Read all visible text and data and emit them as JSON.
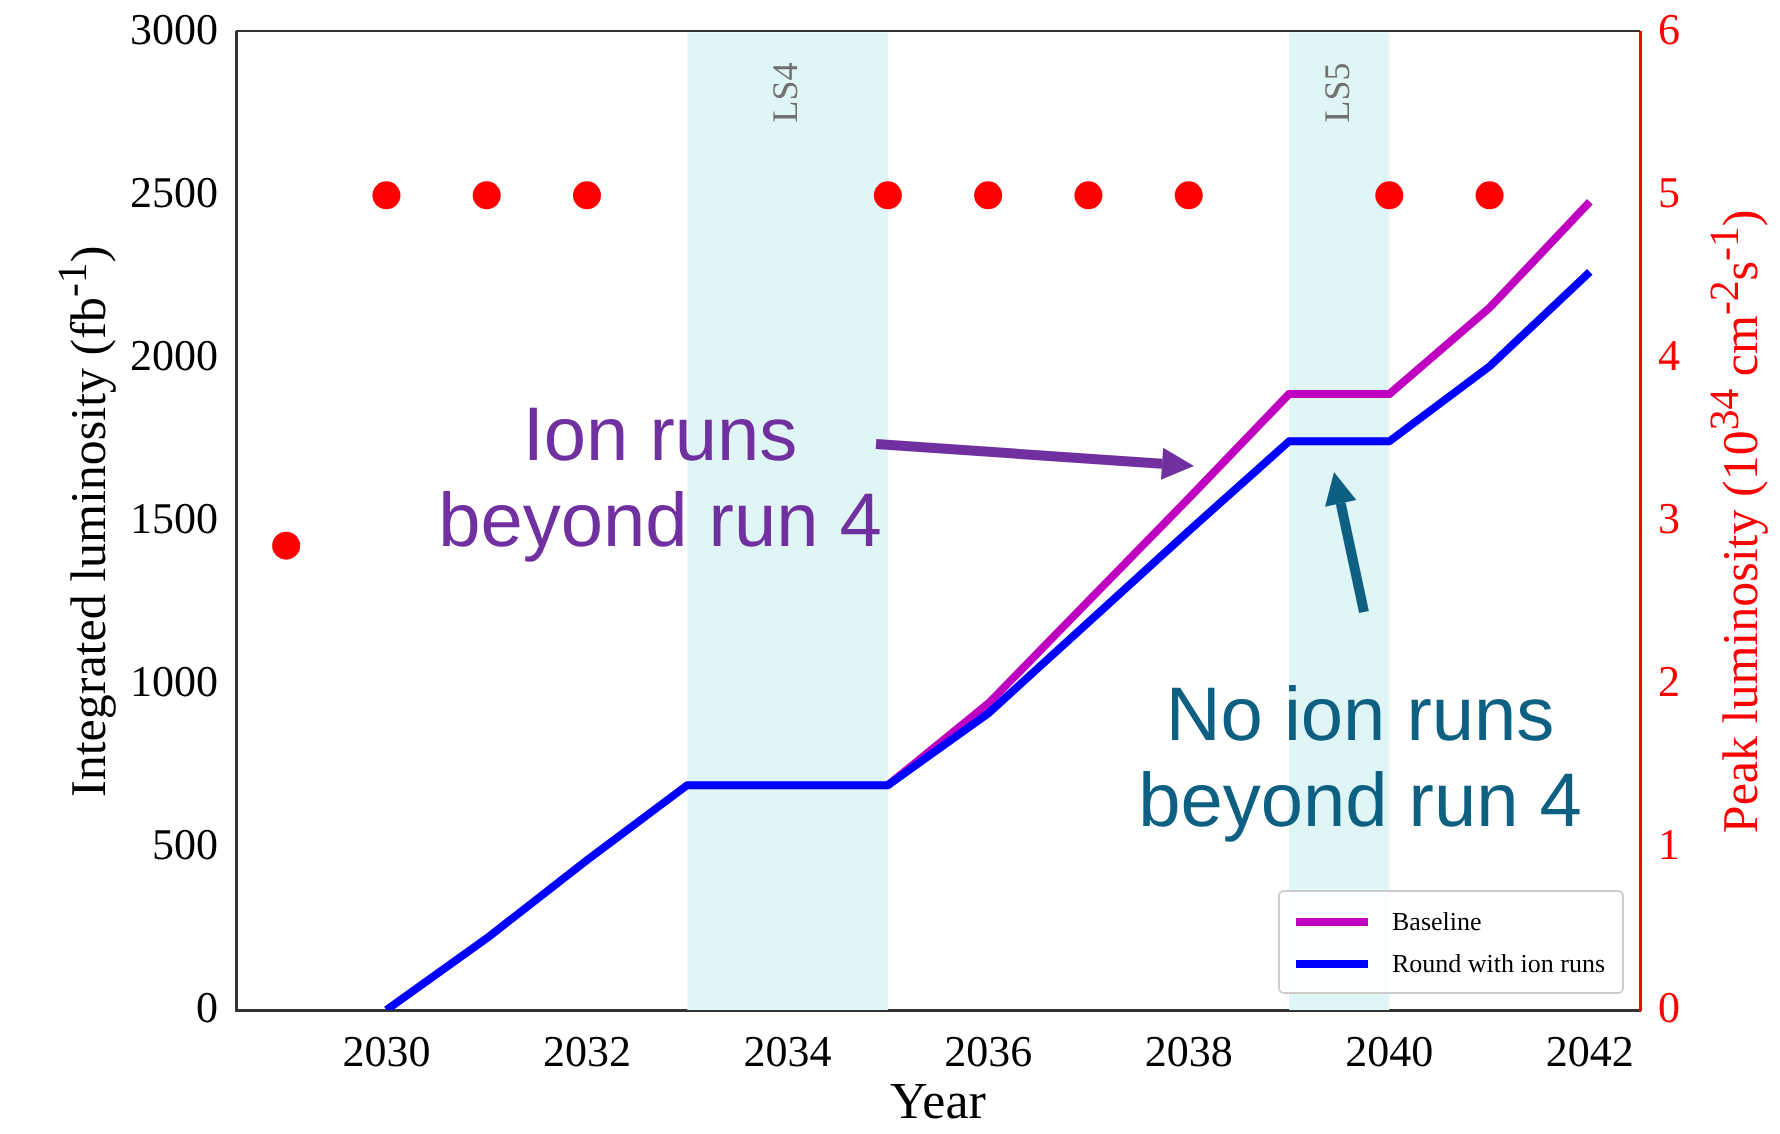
{
  "chart_data": {
    "type": "line",
    "xlabel": "Year",
    "ylabel": "Integrated luminosity (fb$^{-1}$)",
    "y2label": "Peak luminosity (10$^{34}$ cm$^{-2}$s$^{-1}$)",
    "x": [
      2030,
      2031,
      2032,
      2033,
      2034,
      2035,
      2036,
      2037,
      2038,
      2039,
      2040,
      2041,
      2042
    ],
    "series": [
      {
        "name": "Baseline",
        "color": "#c000c0",
        "values": [
          null,
          null,
          null,
          null,
          null,
          690,
          940,
          1255,
          1570,
          1890,
          1890,
          2155,
          2480
        ]
      },
      {
        "name": "Round with ion runs",
        "color": "#0000ff",
        "values": [
          0,
          220,
          460,
          690,
          690,
          690,
          910,
          1190,
          1470,
          1745,
          1745,
          1975,
          2265
        ]
      },
      {
        "type": "scatter",
        "axis": "y2",
        "color": "#ff0000",
        "x": [
          2029,
          2030,
          2031,
          2032,
          2035,
          2036,
          2037,
          2038,
          2040,
          2041
        ],
        "values": [
          2.85,
          5,
          5,
          5,
          5,
          5,
          5,
          5,
          5,
          5
        ]
      }
    ],
    "xlim": [
      2028.5,
      2042.5
    ],
    "xticks": [
      2030,
      2032,
      2034,
      2036,
      2038,
      2040,
      2042
    ],
    "ylim": [
      0,
      3000
    ],
    "yticks": [
      0,
      500,
      1000,
      1500,
      2000,
      2500,
      3000
    ],
    "y2lim": [
      0,
      6
    ],
    "y2ticks": [
      0,
      1,
      2,
      3,
      4,
      5,
      6
    ],
    "bands": [
      {
        "axis": "x",
        "from": 2033,
        "to": 2035,
        "label": "LS4",
        "color": "#e0f5f5"
      },
      {
        "axis": "x",
        "from": 2039,
        "to": 2040,
        "label": "LS5",
        "color": "#e0f5f5"
      }
    ],
    "annotations": [
      "Ion runs beyond run 4",
      "No ion runs beyond run 4"
    ],
    "legend": "bottom right",
    "grid": false,
    "line_style": "solid"
  }
}
